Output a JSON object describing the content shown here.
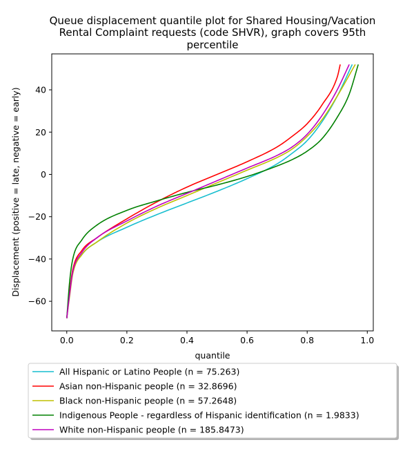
{
  "chart_data": {
    "type": "line",
    "title_lines": [
      "Queue displacement quantile plot for Shared Housing/Vacation",
      "Rental Complaint  requests (code SHVR), graph covers 95th",
      "percentile"
    ],
    "xlabel": "quantile",
    "ylabel": "Displacement (positive = late, negative = early)",
    "xlim": [
      -0.05,
      1.02
    ],
    "ylim": [
      -74,
      57
    ],
    "xticks": [
      0.0,
      0.2,
      0.4,
      0.6,
      0.8,
      1.0
    ],
    "xtick_labels": [
      "0.0",
      "0.2",
      "0.4",
      "0.6",
      "0.8",
      "1.0"
    ],
    "yticks": [
      -60,
      -40,
      -20,
      0,
      20,
      40
    ],
    "ytick_labels": [
      "−60",
      "−40",
      "−20",
      "0",
      "20",
      "40"
    ],
    "legend_position": "bottom",
    "series": [
      {
        "name": "All Hispanic or Latino People (n = 75.263)",
        "color": "#17becf",
        "points": [
          [
            0.0,
            -68
          ],
          [
            0.01,
            -55
          ],
          [
            0.02,
            -46
          ],
          [
            0.05,
            -38
          ],
          [
            0.1,
            -32
          ],
          [
            0.2,
            -25
          ],
          [
            0.3,
            -19
          ],
          [
            0.4,
            -13.5
          ],
          [
            0.5,
            -8
          ],
          [
            0.6,
            -2
          ],
          [
            0.7,
            5
          ],
          [
            0.75,
            10
          ],
          [
            0.8,
            16
          ],
          [
            0.85,
            25
          ],
          [
            0.9,
            37
          ],
          [
            0.95,
            52
          ]
        ]
      },
      {
        "name": "Asian non-Hispanic people (n = 32.8696)",
        "color": "#ff0000",
        "points": [
          [
            0.0,
            -68
          ],
          [
            0.01,
            -55
          ],
          [
            0.02,
            -45
          ],
          [
            0.05,
            -36
          ],
          [
            0.1,
            -30
          ],
          [
            0.2,
            -21
          ],
          [
            0.3,
            -13
          ],
          [
            0.4,
            -6
          ],
          [
            0.5,
            0
          ],
          [
            0.6,
            6
          ],
          [
            0.7,
            13
          ],
          [
            0.75,
            18
          ],
          [
            0.8,
            24
          ],
          [
            0.85,
            33
          ],
          [
            0.9,
            46
          ],
          [
            0.91,
            52
          ]
        ]
      },
      {
        "name": "Black non-Hispanic people (n = 57.2648)",
        "color": "#bfbf00",
        "points": [
          [
            0.0,
            -68
          ],
          [
            0.01,
            -57
          ],
          [
            0.02,
            -47
          ],
          [
            0.05,
            -38
          ],
          [
            0.1,
            -32
          ],
          [
            0.2,
            -23
          ],
          [
            0.3,
            -16
          ],
          [
            0.4,
            -10
          ],
          [
            0.5,
            -4
          ],
          [
            0.6,
            2
          ],
          [
            0.7,
            8
          ],
          [
            0.75,
            12
          ],
          [
            0.8,
            18
          ],
          [
            0.85,
            26
          ],
          [
            0.9,
            37
          ],
          [
            0.96,
            52
          ]
        ]
      },
      {
        "name": "Indigenous People - regardless of Hispanic identification (n = 1.9833)",
        "color": "#008000",
        "points": [
          [
            0.0,
            -68
          ],
          [
            0.01,
            -50
          ],
          [
            0.02,
            -40
          ],
          [
            0.05,
            -31
          ],
          [
            0.1,
            -24
          ],
          [
            0.2,
            -17
          ],
          [
            0.3,
            -12.5
          ],
          [
            0.4,
            -8.5
          ],
          [
            0.5,
            -5
          ],
          [
            0.6,
            -1
          ],
          [
            0.7,
            4
          ],
          [
            0.75,
            7
          ],
          [
            0.8,
            11
          ],
          [
            0.85,
            17
          ],
          [
            0.9,
            27
          ],
          [
            0.94,
            38
          ],
          [
            0.97,
            52
          ]
        ]
      },
      {
        "name": "White non-Hispanic people (n = 185.8473)",
        "color": "#bf00bf",
        "points": [
          [
            0.0,
            -68
          ],
          [
            0.01,
            -56
          ],
          [
            0.02,
            -46
          ],
          [
            0.05,
            -37
          ],
          [
            0.1,
            -30
          ],
          [
            0.2,
            -22
          ],
          [
            0.3,
            -15
          ],
          [
            0.4,
            -9
          ],
          [
            0.5,
            -3
          ],
          [
            0.6,
            3
          ],
          [
            0.7,
            9
          ],
          [
            0.75,
            13
          ],
          [
            0.8,
            19
          ],
          [
            0.85,
            28
          ],
          [
            0.9,
            40
          ],
          [
            0.94,
            52
          ]
        ]
      }
    ]
  }
}
